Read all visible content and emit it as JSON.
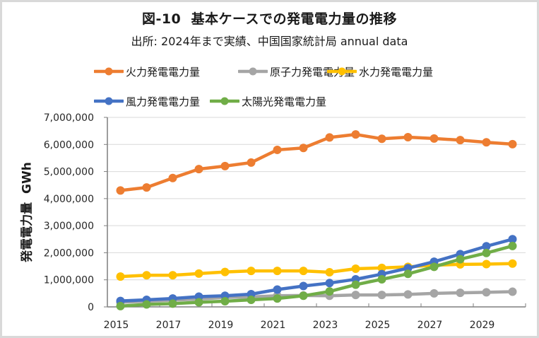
{
  "chart_data": {
    "type": "line",
    "title": "図-10  基本ケースでの発電電力量の推移",
    "subtitle": "出所: 2024年まで実績、中国国家統計局 annual data",
    "xlabel": "",
    "ylabel": "発電電力量  GWh",
    "x": [
      2015,
      2016,
      2017,
      2018,
      2019,
      2020,
      2021,
      2022,
      2023,
      2024,
      2025,
      2026,
      2027,
      2028,
      2029,
      2030
    ],
    "x_tick_labels": [
      "2015",
      "2017",
      "2019",
      "2021",
      "2023",
      "2025",
      "2027",
      "2029"
    ],
    "ylim": [
      0,
      7000000
    ],
    "y_ticks": [
      0,
      1000000,
      2000000,
      3000000,
      4000000,
      5000000,
      6000000,
      7000000
    ],
    "y_tick_labels": [
      "0",
      "1,000,000",
      "2,000,000",
      "3,000,000",
      "4,000,000",
      "5,000,000",
      "6,000,000",
      "7,000,000"
    ],
    "grid": "horizontal",
    "legend_position": "top",
    "series": [
      {
        "name": "火力発電電力量",
        "color": "#ed7d31",
        "values": [
          4300000,
          4410000,
          4760000,
          5090000,
          5200000,
          5330000,
          5800000,
          5870000,
          6260000,
          6370000,
          6210000,
          6270000,
          6220000,
          6160000,
          6080000,
          6010000
        ]
      },
      {
        "name": "原子力発電電力量",
        "color": "#a5a5a5",
        "values": [
          170000,
          210000,
          250000,
          290000,
          350000,
          370000,
          410000,
          420000,
          410000,
          440000,
          440000,
          460000,
          500000,
          520000,
          540000,
          560000
        ]
      },
      {
        "name": "水力発電電力量",
        "color": "#ffc000",
        "values": [
          1120000,
          1170000,
          1170000,
          1230000,
          1290000,
          1330000,
          1330000,
          1330000,
          1280000,
          1410000,
          1440000,
          1480000,
          1540000,
          1570000,
          1580000,
          1600000
        ]
      },
      {
        "name": "風力発電電力量",
        "color": "#4472c4",
        "values": [
          220000,
          260000,
          310000,
          380000,
          410000,
          470000,
          640000,
          770000,
          880000,
          1020000,
          1210000,
          1430000,
          1670000,
          1950000,
          2240000,
          2500000
        ]
      },
      {
        "name": "太陽光発電電力量",
        "color": "#70ad47",
        "values": [
          30000,
          90000,
          120000,
          170000,
          210000,
          260000,
          310000,
          410000,
          570000,
          820000,
          1020000,
          1220000,
          1480000,
          1760000,
          1990000,
          2250000
        ]
      }
    ]
  }
}
